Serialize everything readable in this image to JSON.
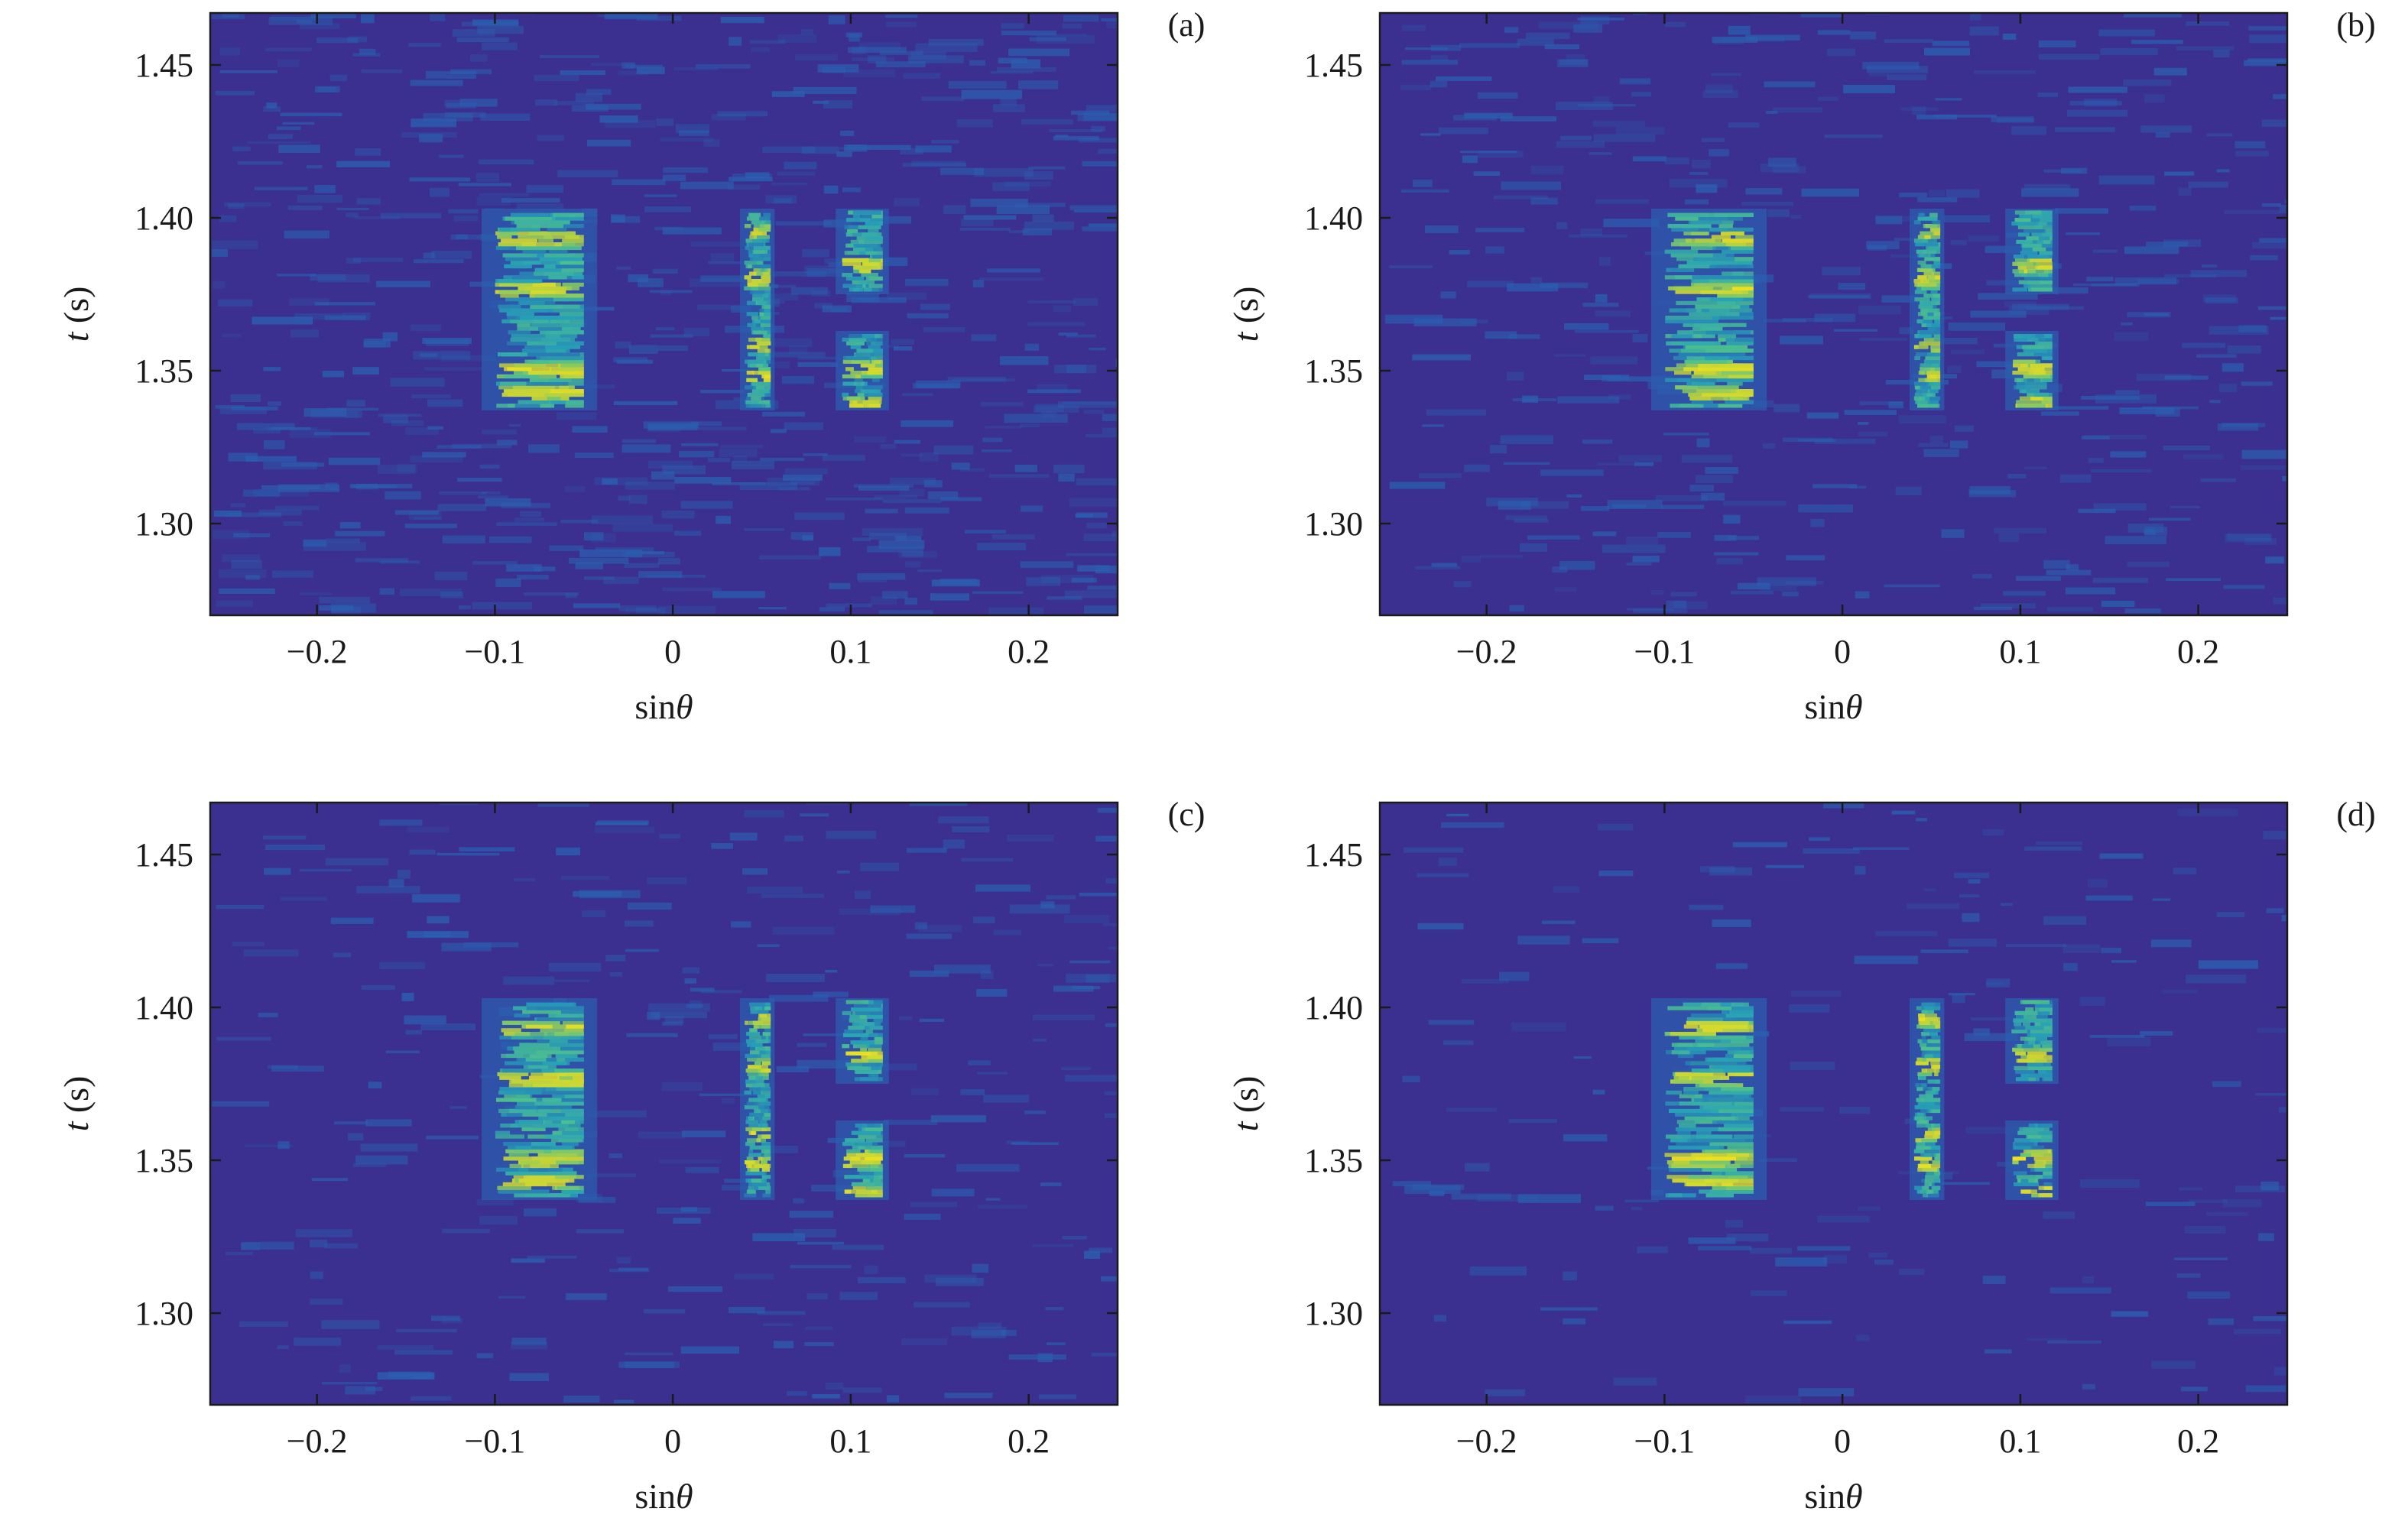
{
  "chart_data": [
    {
      "type": "heatmap",
      "panel_label": "(a)",
      "xlabel": "sinθ",
      "ylabel_var": "t",
      "ylabel_unit": " (s)",
      "xlim": [
        -0.26,
        0.25
      ],
      "ylim": [
        1.27,
        1.467
      ],
      "xticks": [
        -0.2,
        -0.1,
        0,
        0.1,
        0.2
      ],
      "xtick_labels": [
        "−0.2",
        "−0.1",
        "0",
        "0.1",
        "0.2"
      ],
      "yticks": [
        1.3,
        1.35,
        1.4,
        1.45
      ],
      "ytick_labels": [
        "1.30",
        "1.35",
        "1.40",
        "1.45"
      ],
      "noise_level": 0.3,
      "colormap": [
        "#3b2f8f",
        "#2b5fb0",
        "#27a0b8",
        "#4fc08d",
        "#bfd33a",
        "#f2e21e"
      ],
      "clusters": [
        {
          "x_range": [
            -0.1,
            -0.05
          ],
          "t_range": [
            1.338,
            1.402
          ],
          "peaks": [
            1.342,
            1.35,
            1.376,
            1.393
          ]
        },
        {
          "x_range": [
            0.04,
            0.055
          ],
          "t_range": [
            1.338,
            1.402
          ],
          "peaks": [
            1.348,
            1.358,
            1.38,
            1.395
          ]
        },
        {
          "x_range": [
            0.095,
            0.118
          ],
          "t_range": [
            1.338,
            1.362
          ],
          "peaks": [
            1.339,
            1.35
          ]
        },
        {
          "x_range": [
            0.095,
            0.118
          ],
          "t_range": [
            1.376,
            1.402
          ],
          "peaks": [
            1.384
          ]
        }
      ]
    },
    {
      "type": "heatmap",
      "panel_label": "(b)",
      "xlabel": "sinθ",
      "ylabel_var": "t",
      "ylabel_unit": " (s)",
      "xlim": [
        -0.26,
        0.25
      ],
      "ylim": [
        1.27,
        1.467
      ],
      "xticks": [
        -0.2,
        -0.1,
        0,
        0.1,
        0.2
      ],
      "xtick_labels": [
        "−0.2",
        "−0.1",
        "0",
        "0.1",
        "0.2"
      ],
      "yticks": [
        1.3,
        1.35,
        1.4,
        1.45
      ],
      "ytick_labels": [
        "1.30",
        "1.35",
        "1.40",
        "1.45"
      ],
      "noise_level": 0.2,
      "colormap": [
        "#3b2f8f",
        "#2b5fb0",
        "#27a0b8",
        "#4fc08d",
        "#bfd33a",
        "#f2e21e"
      ],
      "clusters": [
        {
          "x_range": [
            -0.1,
            -0.05
          ],
          "t_range": [
            1.338,
            1.402
          ],
          "peaks": [
            1.342,
            1.35,
            1.376,
            1.393
          ]
        },
        {
          "x_range": [
            0.04,
            0.055
          ],
          "t_range": [
            1.338,
            1.402
          ],
          "peaks": [
            1.348,
            1.358,
            1.38,
            1.395
          ]
        },
        {
          "x_range": [
            0.095,
            0.118
          ],
          "t_range": [
            1.338,
            1.362
          ],
          "peaks": [
            1.339,
            1.35
          ]
        },
        {
          "x_range": [
            0.095,
            0.118
          ],
          "t_range": [
            1.376,
            1.402
          ],
          "peaks": [
            1.384
          ]
        }
      ]
    },
    {
      "type": "heatmap",
      "panel_label": "(c)",
      "xlabel": "sinθ",
      "ylabel_var": "t",
      "ylabel_unit": " (s)",
      "xlim": [
        -0.26,
        0.25
      ],
      "ylim": [
        1.27,
        1.467
      ],
      "xticks": [
        -0.2,
        -0.1,
        0,
        0.1,
        0.2
      ],
      "xtick_labels": [
        "−0.2",
        "−0.1",
        "0",
        "0.1",
        "0.2"
      ],
      "yticks": [
        1.3,
        1.35,
        1.4,
        1.45
      ],
      "ytick_labels": [
        "1.30",
        "1.35",
        "1.40",
        "1.45"
      ],
      "noise_level": 0.14,
      "colormap": [
        "#3b2f8f",
        "#2b5fb0",
        "#27a0b8",
        "#4fc08d",
        "#bfd33a",
        "#f2e21e"
      ],
      "clusters": [
        {
          "x_range": [
            -0.1,
            -0.05
          ],
          "t_range": [
            1.338,
            1.402
          ],
          "peaks": [
            1.342,
            1.35,
            1.376,
            1.393
          ]
        },
        {
          "x_range": [
            0.04,
            0.055
          ],
          "t_range": [
            1.338,
            1.402
          ],
          "peaks": [
            1.348,
            1.358,
            1.38,
            1.395
          ]
        },
        {
          "x_range": [
            0.095,
            0.118
          ],
          "t_range": [
            1.338,
            1.362
          ],
          "peaks": [
            1.339,
            1.35
          ]
        },
        {
          "x_range": [
            0.095,
            0.118
          ],
          "t_range": [
            1.376,
            1.402
          ],
          "peaks": [
            1.384
          ]
        }
      ]
    },
    {
      "type": "heatmap",
      "panel_label": "(d)",
      "xlabel": "sinθ",
      "ylabel_var": "t",
      "ylabel_unit": " (s)",
      "xlim": [
        -0.26,
        0.25
      ],
      "ylim": [
        1.27,
        1.467
      ],
      "xticks": [
        -0.2,
        -0.1,
        0,
        0.1,
        0.2
      ],
      "xtick_labels": [
        "−0.2",
        "−0.1",
        "0",
        "0.1",
        "0.2"
      ],
      "yticks": [
        1.3,
        1.35,
        1.4,
        1.45
      ],
      "ytick_labels": [
        "1.30",
        "1.35",
        "1.40",
        "1.45"
      ],
      "noise_level": 0.08,
      "colormap": [
        "#3b2f8f",
        "#2b5fb0",
        "#27a0b8",
        "#4fc08d",
        "#bfd33a",
        "#f2e21e"
      ],
      "clusters": [
        {
          "x_range": [
            -0.1,
            -0.05
          ],
          "t_range": [
            1.338,
            1.402
          ],
          "peaks": [
            1.342,
            1.35,
            1.376,
            1.393
          ]
        },
        {
          "x_range": [
            0.04,
            0.055
          ],
          "t_range": [
            1.338,
            1.402
          ],
          "peaks": [
            1.348,
            1.358,
            1.38,
            1.395
          ]
        },
        {
          "x_range": [
            0.095,
            0.118
          ],
          "t_range": [
            1.338,
            1.362
          ],
          "peaks": [
            1.339,
            1.35
          ]
        },
        {
          "x_range": [
            0.095,
            0.118
          ],
          "t_range": [
            1.376,
            1.402
          ],
          "peaks": [
            1.384
          ]
        }
      ]
    }
  ]
}
